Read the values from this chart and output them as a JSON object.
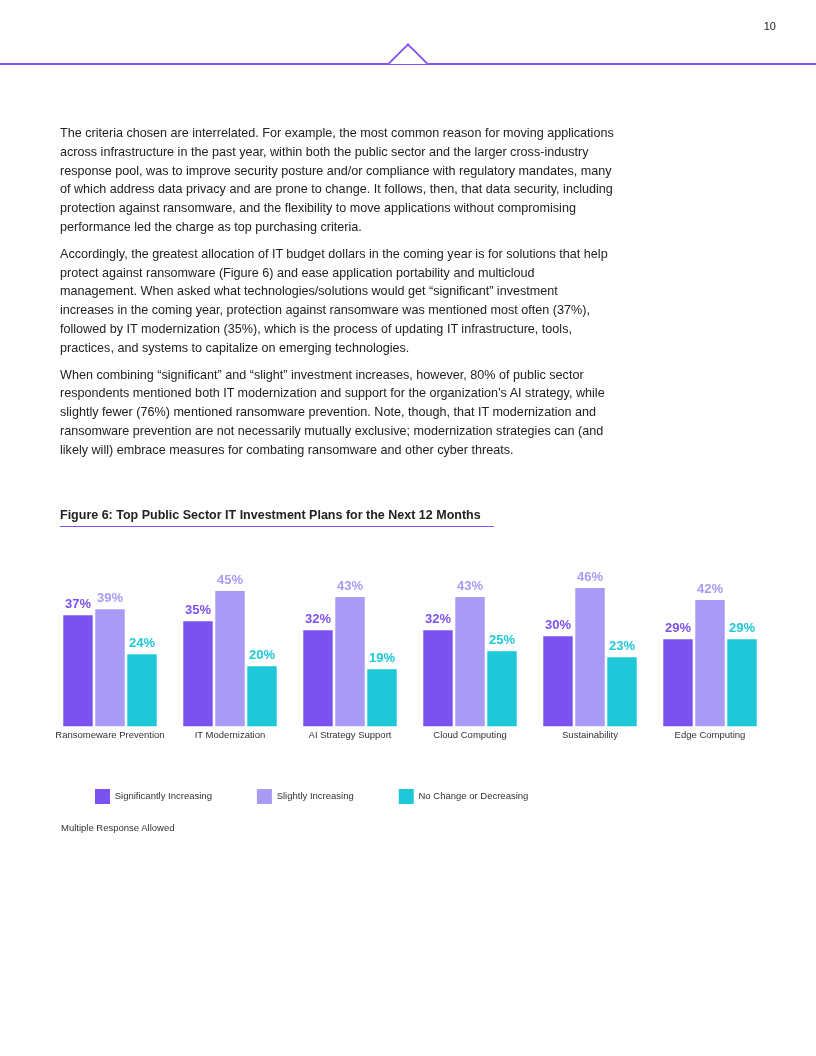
{
  "chart_data": {
    "type": "bar",
    "title": "Figure 6: Top Public Sector IT Investment Plans for the Next 12 Months",
    "categories": [
      "Ransomeware Prevention",
      "IT Modernization",
      "AI Strategy Support",
      "Cloud Computing",
      "Sustainability",
      "Edge Computing"
    ],
    "series": [
      {
        "name": "Significantly Increasing",
        "color": "#7b52f0",
        "values": [
          37,
          35,
          32,
          32,
          30,
          29
        ],
        "value_labels": [
          "37%",
          "35%",
          "32%",
          "32%",
          "30%",
          "29%"
        ]
      },
      {
        "name": "Slightly Increasing",
        "color": "#a99af5",
        "values": [
          39,
          45,
          43,
          43,
          46,
          42
        ],
        "value_labels": [
          "39%",
          "45%",
          "43%",
          "43%",
          "46%",
          "42%"
        ]
      },
      {
        "name": "No Change or Decreasing",
        "color": "#1ec8d8",
        "values": [
          24,
          20,
          19,
          25,
          23,
          29
        ],
        "value_labels": [
          "24%",
          "20%",
          "19%",
          "25%",
          "23%",
          "29%"
        ]
      }
    ],
    "legend": "bottom left",
    "grid": false,
    "annotations": [
      "10",
      "The criteria chosen are interrelated. For example, the most common reason for moving applications across infrastructure in the past year, within both the public sector and the larger cross-industry response pool, was to improve security posture and/or compliance with regulatory mandates, many of which address data privacy and are prone to change. It follows, then, that data security, including protection against ransomware, and the flexibility to move applications without compromising performance led the charge as top purchasing criteria.",
      "Accordingly, the greatest allocation of IT budget dollars in the coming year is for solutions that help protect against ransomware (Figure 6) and ease application portability and multicloud management. When asked what technologies/solutions would get “significant” investment increases in the coming year, protection against ransomware was mentioned most often (37%), followed by IT modernization (35%), which is the process of updating IT infrastructure, tools, practices, and systems to capitalize on emerging technologies.",
      "When combining “significant” and “slight” investment increases, however, 80% of public sector respondents mentioned both IT modernization and support for the organization’s AI strategy, while slightly fewer (76%) mentioned ransomware prevention. Note, though, that IT modernization and ransomware prevention are not necessarily mutually exclusive; modernization strategies can (and likely will) embrace measures for combating ransomware and other cyber threats.",
      "Multiple Response Allowed"
    ]
  }
}
